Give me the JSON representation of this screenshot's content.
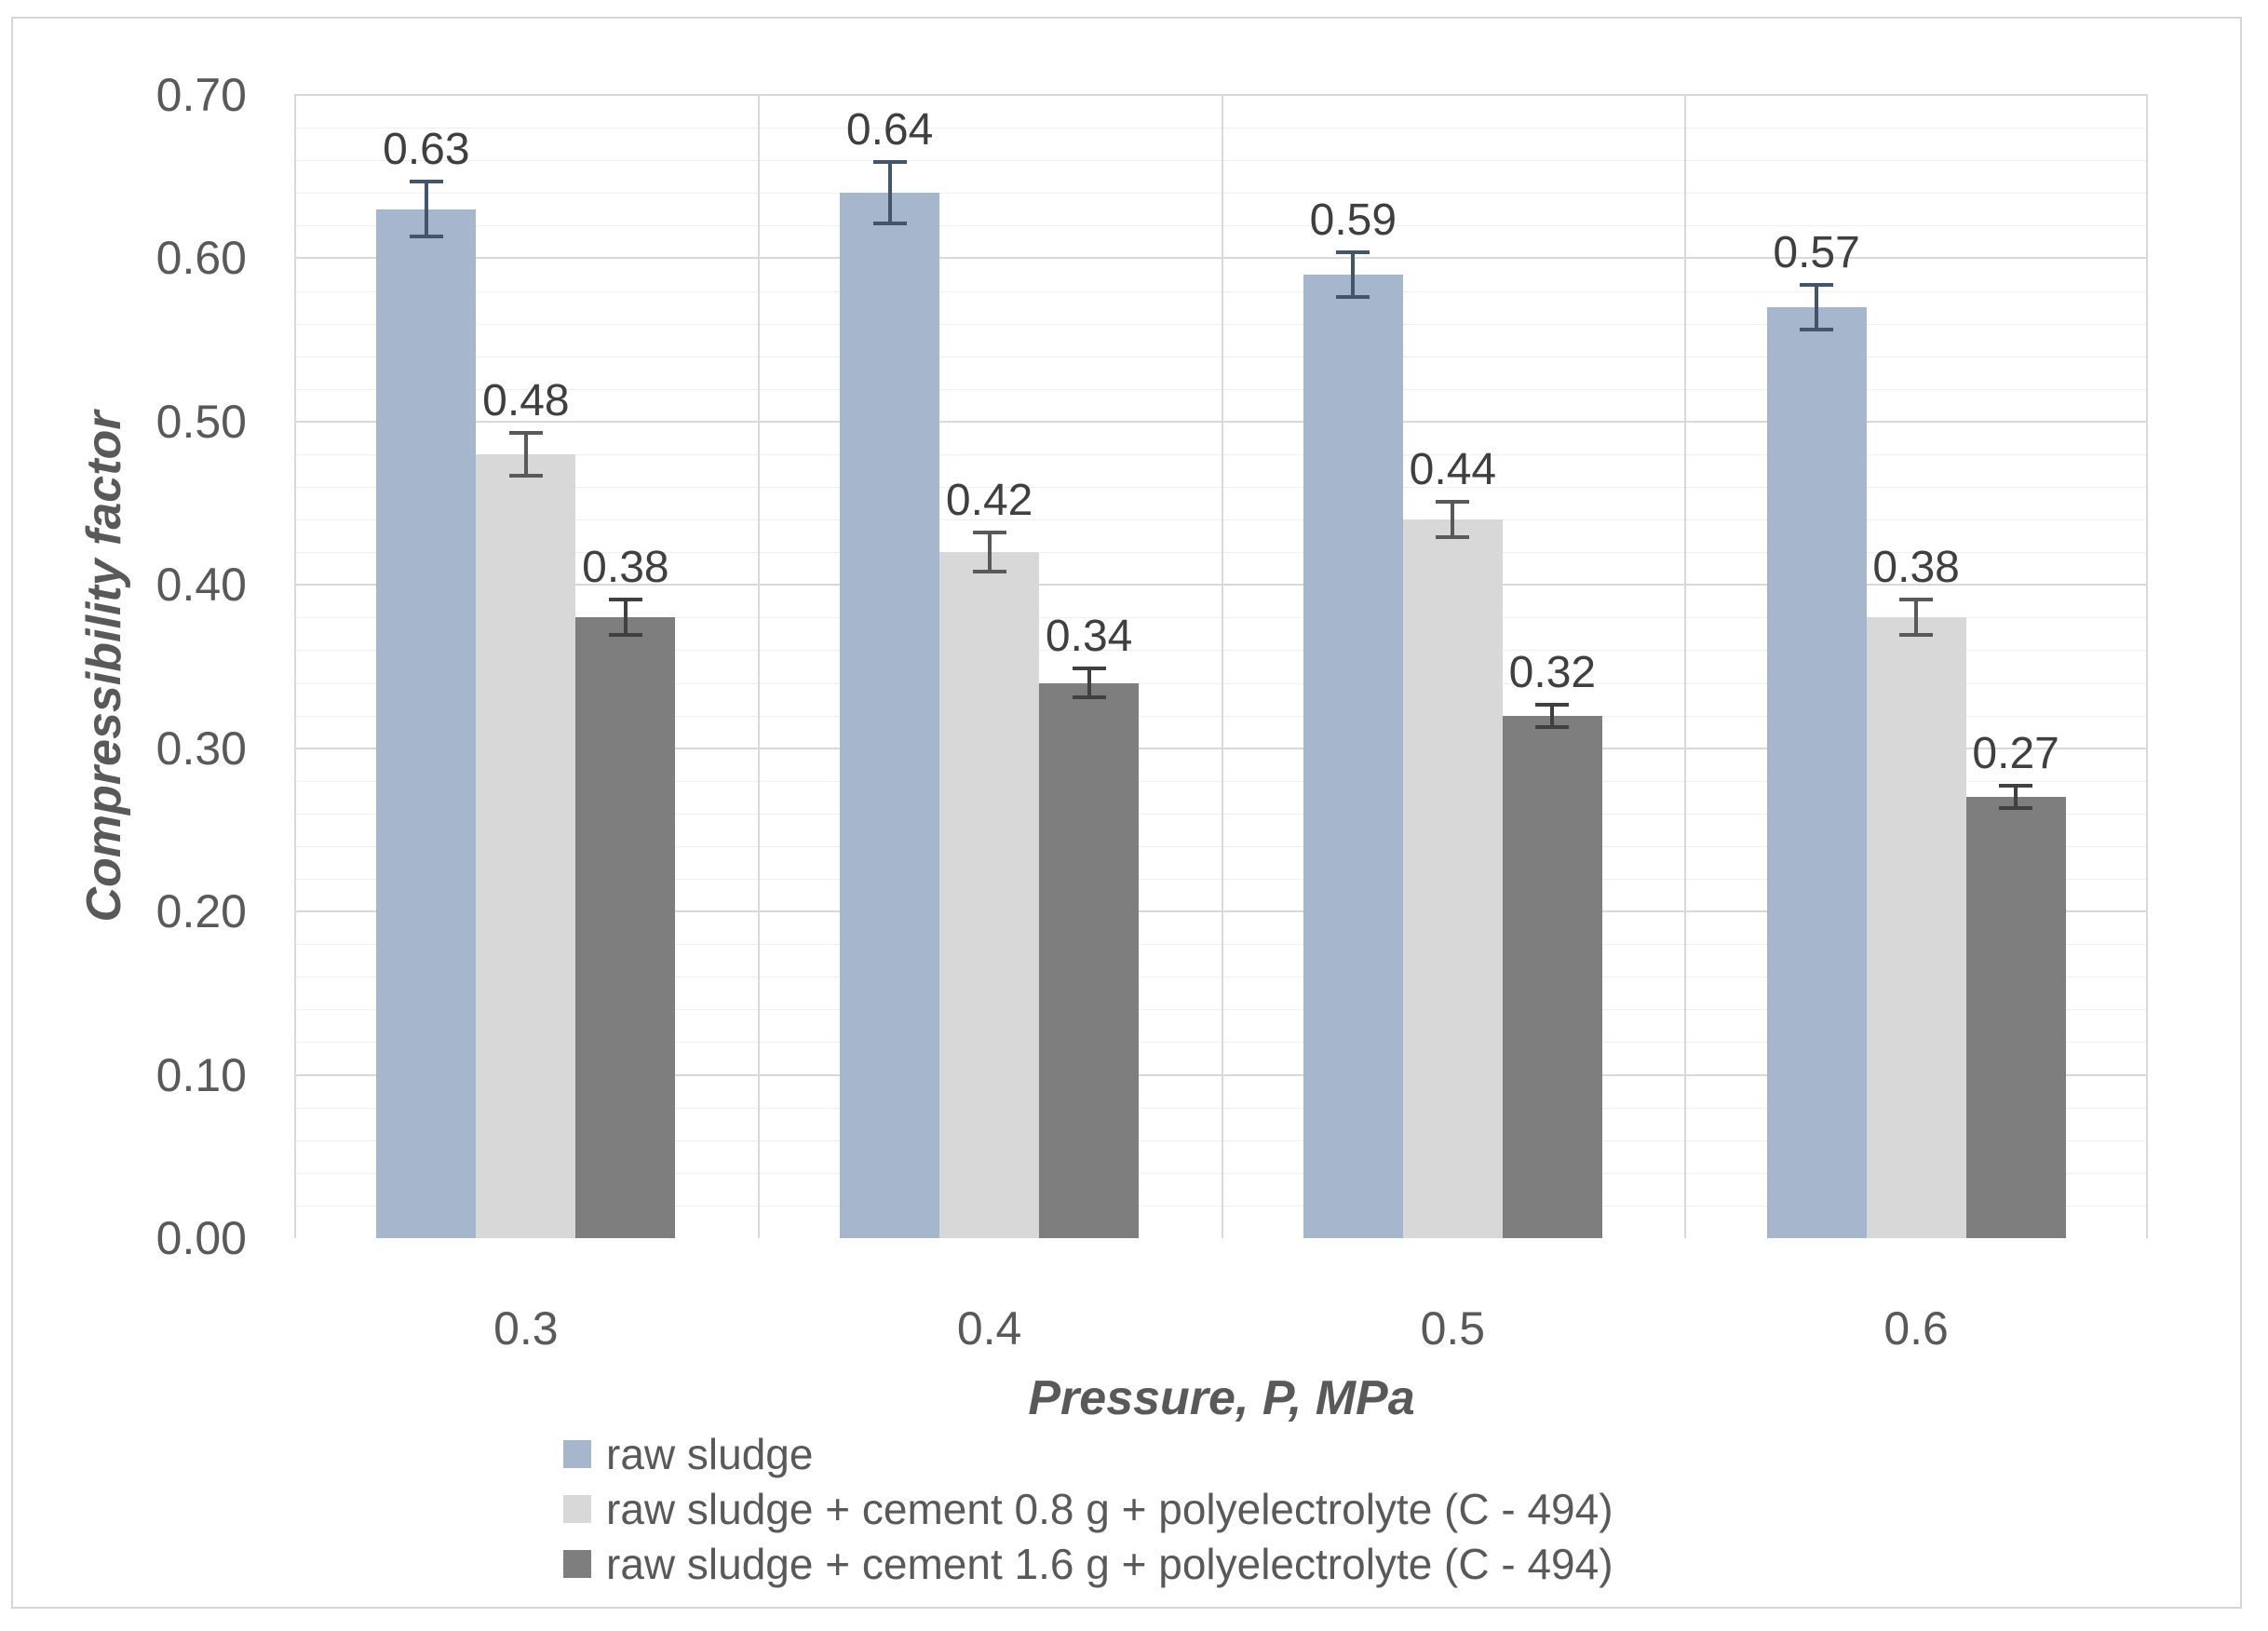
{
  "figure": {
    "background": "#ffffff",
    "border_color": "#d6d6d6"
  },
  "chart_data": {
    "type": "bar",
    "title": "",
    "xlabel": "Pressure, P, MPa",
    "ylabel": "Compressibility factor",
    "categories": [
      "0.3",
      "0.4",
      "0.5",
      "0.6"
    ],
    "series": [
      {
        "name": "raw sludge",
        "color": "#a6b7cd",
        "error_color": "#44546a",
        "values": [
          0.63,
          0.64,
          0.59,
          0.57
        ],
        "errors": [
          0.018,
          0.02,
          0.015,
          0.015
        ],
        "labels": [
          "0.63",
          "0.64",
          "0.59",
          "0.57"
        ]
      },
      {
        "name": "raw sludge + cement 0.8 g + polyelectrolyte (C - 494)",
        "color": "#d8d8d8",
        "error_color": "#595959",
        "values": [
          0.48,
          0.42,
          0.44,
          0.38
        ],
        "errors": [
          0.014,
          0.013,
          0.012,
          0.012
        ],
        "labels": [
          "0.48",
          "0.42",
          "0.44",
          "0.38"
        ]
      },
      {
        "name": "raw sludge + cement 1.6 g + polyelectrolyte (C - 494)",
        "color": "#7e7e7e",
        "error_color": "#404040",
        "values": [
          0.38,
          0.34,
          0.32,
          0.27
        ],
        "errors": [
          0.012,
          0.01,
          0.008,
          0.008
        ],
        "labels": [
          "0.38",
          "0.34",
          "0.32",
          "0.27"
        ]
      }
    ],
    "ylim": [
      0,
      0.7
    ],
    "ytick_step": 0.1,
    "minor_gridline_step": 0.02,
    "ytick_labels": [
      "0.00",
      "0.10",
      "0.20",
      "0.30",
      "0.40",
      "0.50",
      "0.60",
      "0.70"
    ],
    "grid": true,
    "legend_position": "bottom-left",
    "colors": {
      "grid_major": "#d9d9d9",
      "grid_minor": "#efefef",
      "axis_line": "#b3b3b3",
      "tick_text": "#595959",
      "data_label_text": "#3f3f3f"
    }
  }
}
